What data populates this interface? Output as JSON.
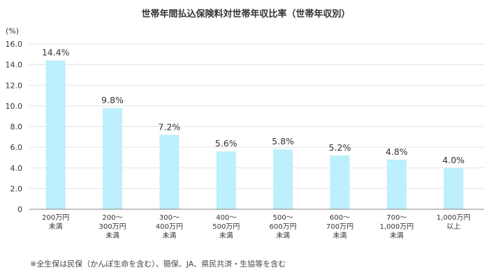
{
  "chart_data": {
    "type": "bar",
    "title": "世帯年間払込保険料対世帯年収比率（世帯年収別）",
    "unit_label": "(%)",
    "categories": [
      [
        "200万円",
        "未満"
      ],
      [
        "200〜",
        "300万円",
        "未満"
      ],
      [
        "300〜",
        "400万円",
        "未満"
      ],
      [
        "400〜",
        "500万円",
        "未満"
      ],
      [
        "500〜",
        "600万円",
        "未満"
      ],
      [
        "600〜",
        "700万円",
        "未満"
      ],
      [
        "700〜",
        "1,000万円",
        "未満"
      ],
      [
        "1,000万円",
        "以上"
      ]
    ],
    "values": [
      14.4,
      9.8,
      7.2,
      5.6,
      5.8,
      5.2,
      4.8,
      4.0
    ],
    "data_labels": [
      "14.4%",
      "9.8%",
      "7.2%",
      "5.6%",
      "5.8%",
      "5.2%",
      "4.8%",
      "4.0%"
    ],
    "ylim": [
      0,
      16
    ],
    "yticks": [
      "0",
      "2.0",
      "4.0",
      "6.0",
      "8.0",
      "10.0",
      "12.0",
      "14.0",
      "16.0"
    ],
    "ytick_values": [
      0,
      2,
      4,
      6,
      8,
      10,
      12,
      14,
      16
    ],
    "grid": true,
    "bar_color": "#bdeffc",
    "grid_color": "#e3e3e3",
    "footnote": "※全生保は民保（かんぽ生命を含む）、簡保、JA、県民共済・生協等を含む"
  }
}
